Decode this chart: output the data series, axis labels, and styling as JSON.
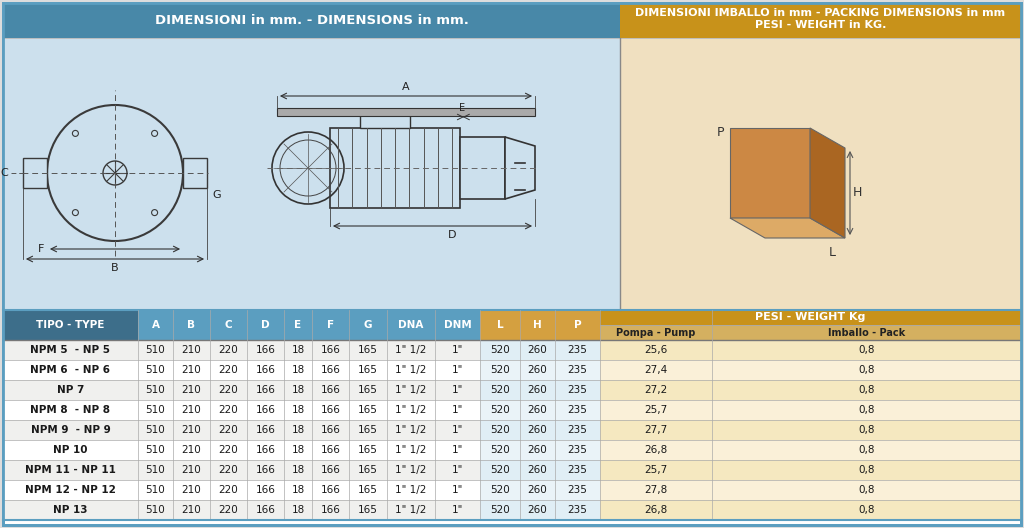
{
  "title_left": "DIMENSIONI in mm. - DIMENSIONS in mm.",
  "title_right_line1": "DIMENSIONI IMBALLO in mm - PACKING DIMENSIONS in mm",
  "title_right_line2": "PESI - WEIGHT in KG.",
  "header_cols": [
    "TIPO - TYPE",
    "A",
    "B",
    "C",
    "D",
    "E",
    "F",
    "G",
    "DNA",
    "DNM",
    "L",
    "H",
    "P",
    "Pompa - Pump",
    "Imballo - Pack"
  ],
  "subheader": "PESI - WEIGHT Kg",
  "rows": [
    [
      "NPM 5  - NP 5",
      "510",
      "210",
      "220",
      "166",
      "18",
      "166",
      "165",
      "1\" 1/2",
      "1\"",
      "520",
      "260",
      "235",
      "25,6",
      "0,8"
    ],
    [
      "NPM 6  - NP 6",
      "510",
      "210",
      "220",
      "166",
      "18",
      "166",
      "165",
      "1\" 1/2",
      "1\"",
      "520",
      "260",
      "235",
      "27,4",
      "0,8"
    ],
    [
      "NP 7",
      "510",
      "210",
      "220",
      "166",
      "18",
      "166",
      "165",
      "1\" 1/2",
      "1\"",
      "520",
      "260",
      "235",
      "27,2",
      "0,8"
    ],
    [
      "NPM 8  - NP 8",
      "510",
      "210",
      "220",
      "166",
      "18",
      "166",
      "165",
      "1\" 1/2",
      "1\"",
      "520",
      "260",
      "235",
      "25,7",
      "0,8"
    ],
    [
      "NPM 9  - NP 9",
      "510",
      "210",
      "220",
      "166",
      "18",
      "166",
      "165",
      "1\" 1/2",
      "1\"",
      "520",
      "260",
      "235",
      "27,7",
      "0,8"
    ],
    [
      "NP 10",
      "510",
      "210",
      "220",
      "166",
      "18",
      "166",
      "165",
      "1\" 1/2",
      "1\"",
      "520",
      "260",
      "235",
      "26,8",
      "0,8"
    ],
    [
      "NPM 11 - NP 11",
      "510",
      "210",
      "220",
      "166",
      "18",
      "166",
      "165",
      "1\" 1/2",
      "1\"",
      "520",
      "260",
      "235",
      "25,7",
      "0,8"
    ],
    [
      "NPM 12 - NP 12",
      "510",
      "210",
      "220",
      "166",
      "18",
      "166",
      "165",
      "1\" 1/2",
      "1\"",
      "520",
      "260",
      "235",
      "27,8",
      "0,8"
    ],
    [
      "NP 13",
      "510",
      "210",
      "220",
      "166",
      "18",
      "166",
      "165",
      "1\" 1/2",
      "1\"",
      "520",
      "260",
      "235",
      "26,8",
      "0,8"
    ]
  ],
  "color_header_blue": "#4888a8",
  "color_header_gold": "#c8921a",
  "color_col_blue_dark": "#3d6e8a",
  "color_col_blue": "#5b9ec0",
  "color_col_gold": "#c8921a",
  "color_bg_blue_light": "#cce0ed",
  "color_bg_gold_light": "#f0e0c0",
  "color_tipo_bg": "#3d6e8a",
  "color_text_white": "#ffffff",
  "color_text_dark": "#222222",
  "color_bold_type": "#1a1a1a",
  "color_lhp_header": "#d4a040",
  "color_pesi_gold": "#c8921a",
  "color_pompa_subhdr": "#d4b060",
  "outer_border": "#5b9ec0",
  "color_grid": "#aaaaaa",
  "color_row_alt": "#f0f0ee",
  "color_row_normal": "#ffffff"
}
